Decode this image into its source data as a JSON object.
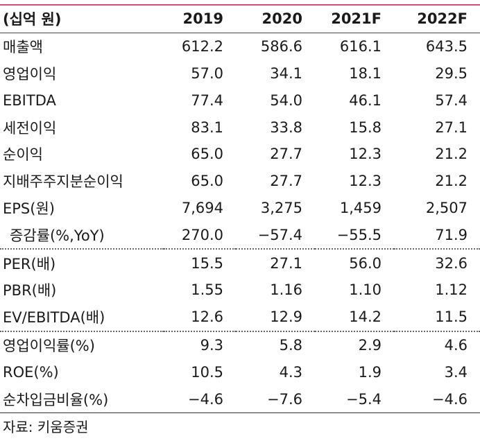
{
  "header": {
    "unit_label": "(십억 원)",
    "years": [
      "2019",
      "2020",
      "2021F",
      "2022F"
    ]
  },
  "rows": [
    {
      "label": "매출액",
      "values": [
        "612.2",
        "586.6",
        "616.1",
        "643.5"
      ]
    },
    {
      "label": "영업이익",
      "values": [
        "57.0",
        "34.1",
        "18.1",
        "29.5"
      ]
    },
    {
      "label": "EBITDA",
      "values": [
        "77.4",
        "54.0",
        "46.1",
        "57.4"
      ]
    },
    {
      "label": "세전이익",
      "values": [
        "83.1",
        "33.8",
        "15.8",
        "27.1"
      ]
    },
    {
      "label": "순이익",
      "values": [
        "65.0",
        "27.7",
        "12.3",
        "21.2"
      ]
    },
    {
      "label": "지배주주지분순이익",
      "values": [
        "65.0",
        "27.7",
        "12.3",
        "21.2"
      ]
    },
    {
      "label": "EPS(원)",
      "values": [
        "7,694",
        "3,275",
        "1,459",
        "2,507"
      ]
    },
    {
      "label": "증감률(%,YoY)",
      "values": [
        "270.0",
        "−57.4",
        "−55.5",
        "71.9"
      ]
    },
    {
      "label": "PER(배)",
      "values": [
        "15.5",
        "27.1",
        "56.0",
        "32.6"
      ]
    },
    {
      "label": "PBR(배)",
      "values": [
        "1.55",
        "1.16",
        "1.10",
        "1.12"
      ]
    },
    {
      "label": "EV/EBITDA(배)",
      "values": [
        "12.6",
        "12.9",
        "14.2",
        "11.5"
      ]
    },
    {
      "label": "영업이익률(%)",
      "values": [
        "9.3",
        "5.8",
        "2.9",
        "4.6"
      ]
    },
    {
      "label": "ROE(%)",
      "values": [
        "10.5",
        "4.3",
        "1.9",
        "3.4"
      ]
    },
    {
      "label": "순차입금비율(%)",
      "values": [
        "−4.6",
        "−7.6",
        "−5.4",
        "−4.6"
      ]
    }
  ],
  "source": "자료: 키움증권",
  "colors": {
    "top_rule": "#c8507a"
  }
}
